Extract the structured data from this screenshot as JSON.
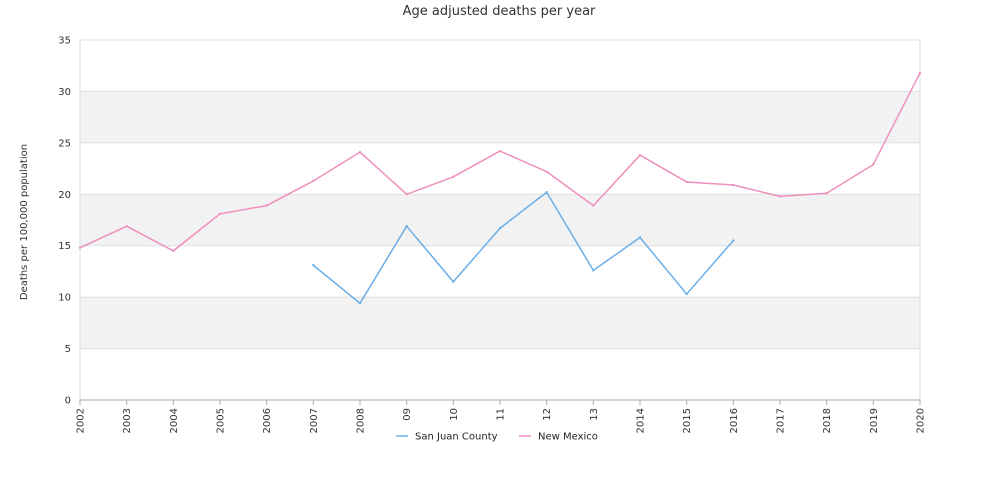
{
  "chart_data": {
    "type": "line",
    "title": "Age adjusted deaths per year",
    "xlabel": "",
    "ylabel": "Deaths per 100,000 population",
    "categories": [
      "2002",
      "2003",
      "2004",
      "2005",
      "2006",
      "2007",
      "2008",
      "09",
      "10",
      "11",
      "12",
      "13",
      "2014",
      "2015",
      "2016",
      "2017",
      "2018",
      "2019",
      "2020"
    ],
    "ylim": [
      0,
      35
    ],
    "yticks": [
      0,
      5,
      10,
      15,
      20,
      25,
      30,
      35
    ],
    "grid": "alternating horizontal bands",
    "legend_position": "bottom",
    "series": [
      {
        "name": "San Juan County",
        "color": "#6aaee8",
        "values": [
          null,
          null,
          null,
          null,
          null,
          13.1,
          9.4,
          16.9,
          11.5,
          16.7,
          20.2,
          12.6,
          15.8,
          10.3,
          15.5,
          null,
          null,
          null,
          null
        ]
      },
      {
        "name": "New Mexico",
        "color": "#ee8fbd",
        "values": [
          14.8,
          16.9,
          14.5,
          18.1,
          18.9,
          21.3,
          24.1,
          20.0,
          21.7,
          24.2,
          22.2,
          18.9,
          23.8,
          21.2,
          20.9,
          19.8,
          20.1,
          22.9,
          31.8
        ]
      }
    ]
  }
}
